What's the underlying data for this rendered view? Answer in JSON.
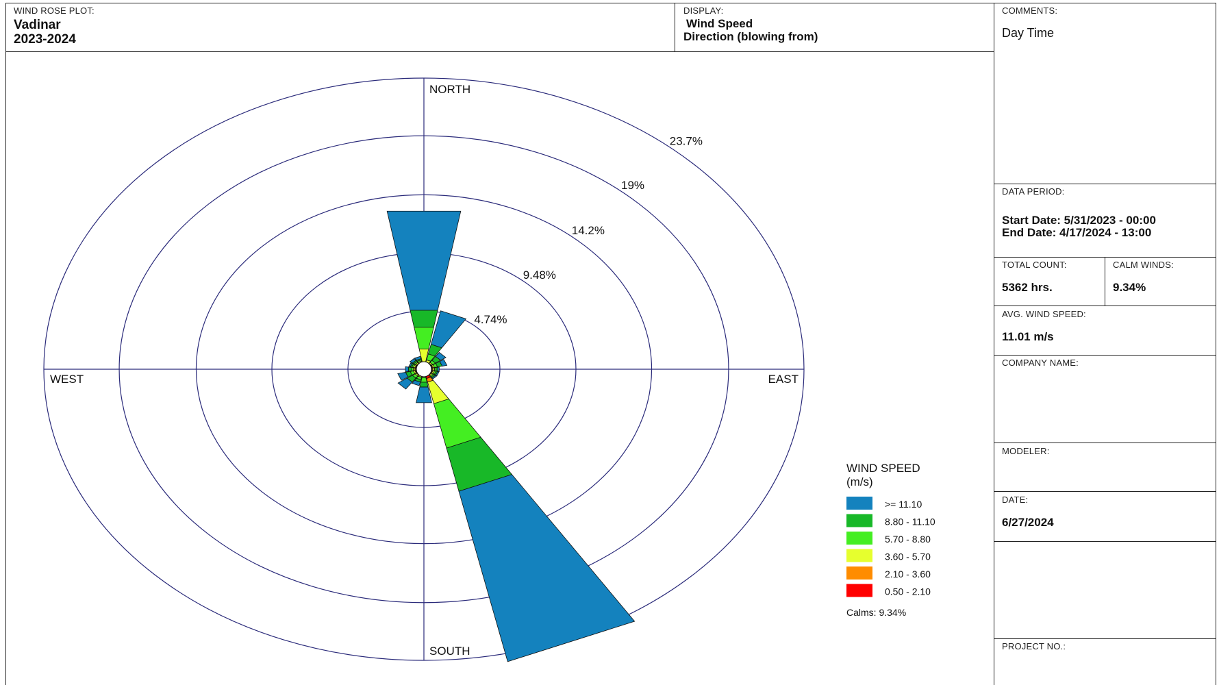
{
  "header": {
    "plot_label": "WIND ROSE PLOT:",
    "station": "Vadinar",
    "period": "2023-2024",
    "display_label": "DISPLAY:",
    "display_line1": "Wind Speed",
    "display_line2": "Direction (blowing from)"
  },
  "side": {
    "comments_label": "COMMENTS:",
    "comments_value": "Day Time",
    "data_period_label": "DATA PERIOD:",
    "start_date": "Start Date: 5/31/2023 - 00:00",
    "end_date": "End Date: 4/17/2024 - 13:00",
    "total_count_label": "TOTAL COUNT:",
    "total_count_value": "5362 hrs.",
    "calm_winds_label": "CALM WINDS:",
    "calm_winds_value": "9.34%",
    "avg_speed_label": "AVG. WIND SPEED:",
    "avg_speed_value": "11.01 m/s",
    "company_label": "COMPANY NAME:",
    "modeler_label": "MODELER:",
    "date_label": "DATE:",
    "date_value": "6/27/2024",
    "project_label": "PROJECT NO.:"
  },
  "chart_data": {
    "type": "windrose",
    "directions": [
      "N",
      "NNE",
      "NE",
      "ENE",
      "E",
      "ESE",
      "SE",
      "SSE",
      "S",
      "SSW",
      "SW",
      "WSW",
      "W",
      "WNW",
      "NW",
      "NNW"
    ],
    "compass_labels": {
      "north": "NORTH",
      "south": "SOUTH",
      "east": "EAST",
      "west": "WEST"
    },
    "ring_values": [
      4.74,
      9.48,
      14.2,
      19,
      23.7
    ],
    "ring_labels": [
      "4.74%",
      "9.48%",
      "14.2%",
      "19%",
      "23.7%"
    ],
    "rmax": 23.7,
    "bins": [
      {
        "range": "0.50 - 2.10",
        "color": "#ff0000"
      },
      {
        "range": "2.10 - 3.60",
        "color": "#ff8c00"
      },
      {
        "range": "3.60 - 5.70",
        "color": "#e6ff2e"
      },
      {
        "range": "5.70 - 8.80",
        "color": "#44ee22"
      },
      {
        "range": "8.80 - 11.10",
        "color": "#18b828"
      },
      {
        "range": ">= 11.10",
        "color": "#1482be"
      }
    ],
    "cumulative_percent": {
      "N": [
        0.05,
        0.1,
        1.2,
        3.0,
        4.4,
        12.6
      ],
      "NNE": [
        0.05,
        0.1,
        0.3,
        0.8,
        1.6,
        4.4
      ],
      "NE": [
        0.05,
        0.1,
        0.2,
        0.4,
        0.8,
        1.2
      ],
      "ENE": [
        0.05,
        0.1,
        0.2,
        0.4,
        0.7,
        1.0
      ],
      "E": [
        0.05,
        0.1,
        0.2,
        0.3,
        0.4,
        0.5
      ],
      "ESE": [
        0.05,
        0.1,
        0.2,
        0.3,
        0.4,
        0.5
      ],
      "SE": [
        0.05,
        0.1,
        0.2,
        0.3,
        0.4,
        0.5
      ],
      "SSE": [
        0.3,
        0.6,
        2.4,
        6.1,
        9.7,
        23.9
      ],
      "S": [
        0.05,
        0.1,
        0.2,
        0.6,
        1.0,
        2.3
      ],
      "SSW": [
        0.05,
        0.1,
        0.2,
        0.4,
        0.6,
        0.9
      ],
      "SW": [
        0.05,
        0.1,
        0.2,
        0.4,
        0.8,
        1.5
      ],
      "WSW": [
        0.05,
        0.1,
        0.2,
        0.4,
        0.7,
        1.2
      ],
      "W": [
        0.05,
        0.1,
        0.2,
        0.3,
        0.5,
        0.7
      ],
      "WNW": [
        0.05,
        0.1,
        0.2,
        0.3,
        0.4,
        0.5
      ],
      "NW": [
        0.05,
        0.1,
        0.2,
        0.3,
        0.4,
        0.6
      ],
      "NNW": [
        0.05,
        0.1,
        0.2,
        0.3,
        0.4,
        0.6
      ]
    },
    "legend_title_line1": "WIND SPEED",
    "legend_title_line2": "(m/s)",
    "calms_text": "Calms: 9.34%"
  }
}
